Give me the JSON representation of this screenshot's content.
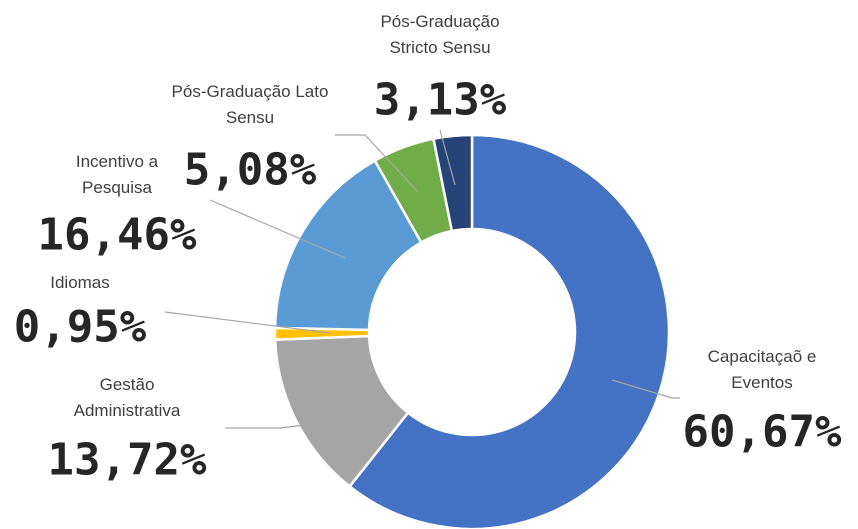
{
  "chart_data": {
    "type": "donut",
    "categories": [
      "Capacitaçaõ e Eventos",
      "Gestão Administrativa",
      "Idiomas",
      "Incentivo a Pesquisa",
      "Pós-Graduação Lato Sensu",
      "Pós-Graduação Stricto Sensu"
    ],
    "values": [
      60.67,
      13.72,
      0.95,
      16.46,
      5.08,
      3.13
    ],
    "value_labels": [
      "60,67%",
      "13,72%",
      "0,95%",
      "16,46%",
      "5,08%",
      "3,13%"
    ],
    "colors": [
      "#4472c4",
      "#a5a5a5",
      "#ffc000",
      "#5b9bd5",
      "#70ad47",
      "#264478"
    ]
  }
}
